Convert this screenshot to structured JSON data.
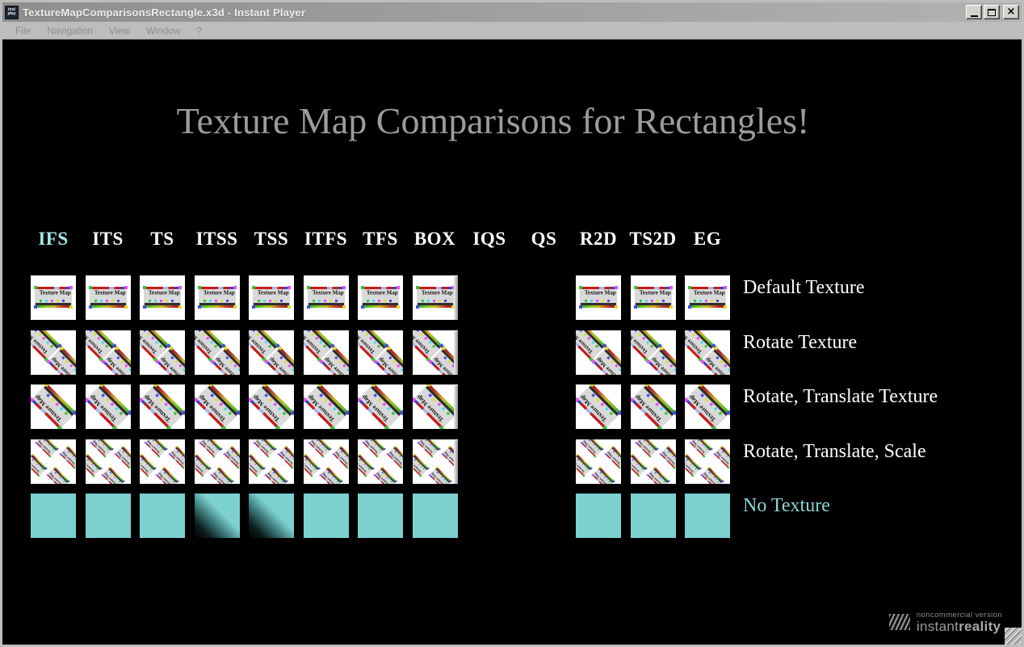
{
  "window": {
    "title": "TextureMapComparisonsRectangle.x3d - Instant Player",
    "icon_line1": "inst",
    "icon_line2": "play",
    "controls": {
      "minimize": "minimize",
      "maximize": "maximize",
      "close": "×"
    }
  },
  "menu": {
    "items": [
      "File",
      "Navigation",
      "View",
      "Window",
      "?"
    ]
  },
  "scene": {
    "title": "Texture Map Comparisons for Rectangles!",
    "texture_text": "Texture Map",
    "columns": [
      {
        "label": "IFS",
        "highlight": true,
        "cells": true
      },
      {
        "label": "ITS",
        "highlight": false,
        "cells": true
      },
      {
        "label": "TS",
        "highlight": false,
        "cells": true
      },
      {
        "label": "ITSS",
        "highlight": false,
        "cells": true,
        "gradient_no_texture": true
      },
      {
        "label": "TSS",
        "highlight": false,
        "cells": true,
        "gradient_no_texture": true
      },
      {
        "label": "ITFS",
        "highlight": false,
        "cells": true
      },
      {
        "label": "TFS",
        "highlight": false,
        "cells": true
      },
      {
        "label": "BOX",
        "highlight": false,
        "cells": true,
        "box_style": true
      },
      {
        "label": "IQS",
        "highlight": false,
        "cells": false
      },
      {
        "label": "QS",
        "highlight": false,
        "cells": false
      },
      {
        "label": "R2D",
        "highlight": false,
        "cells": true
      },
      {
        "label": "TS2D",
        "highlight": false,
        "cells": true
      },
      {
        "label": "EG",
        "highlight": false,
        "cells": true
      }
    ],
    "rows": [
      {
        "label": "Default Texture",
        "variant": "default"
      },
      {
        "label": "Rotate Texture",
        "variant": "rotate"
      },
      {
        "label": "Rotate, Translate Texture",
        "variant": "rotate-translate"
      },
      {
        "label": "Rotate, Translate, Scale",
        "variant": "rotate-translate-scale"
      },
      {
        "label": "No Texture",
        "variant": "none",
        "label_color": "#8fd6d6"
      }
    ],
    "colors": {
      "highlight_header": "#a5e8e8",
      "header": "#ffffff",
      "no_texture_fill": "#7dd0d0",
      "no_texture_label": "#8fd6d6",
      "scene_title": "#9c9c9c"
    }
  },
  "logo": {
    "line1": "noncommercial version",
    "brand_regular": "instant",
    "brand_bold": "reality"
  }
}
